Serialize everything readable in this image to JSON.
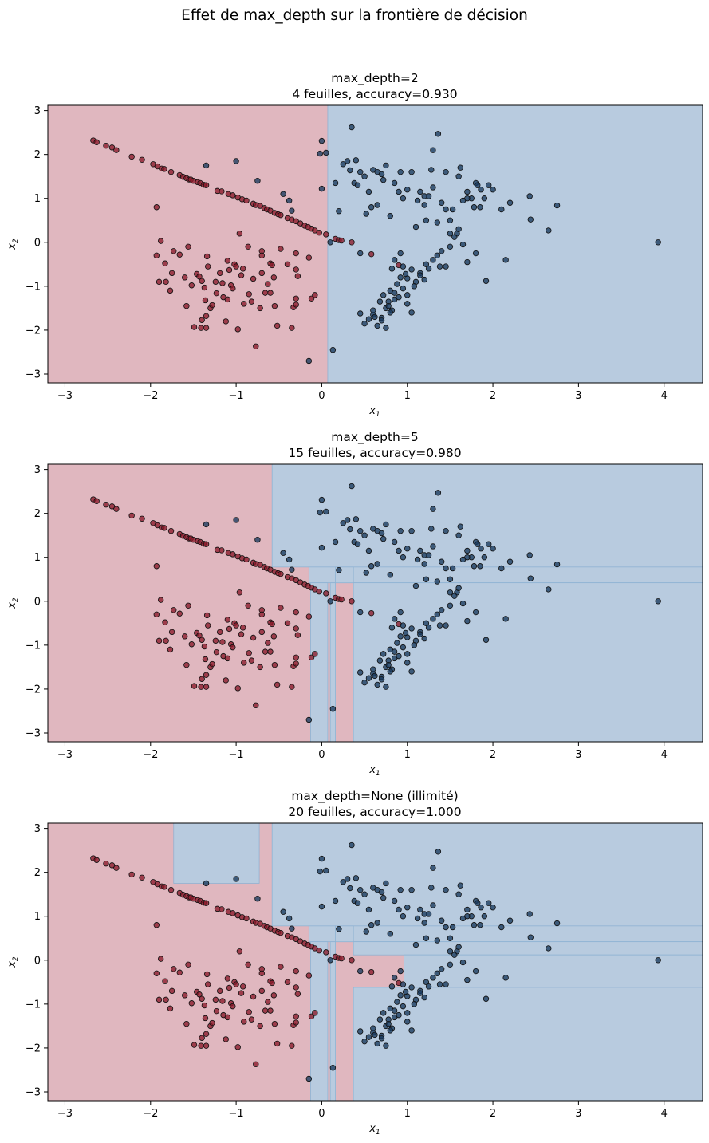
{
  "suptitle": "Effet de max_depth sur la frontière de décision",
  "colors": {
    "region_class0": "#e0b7bf",
    "region_class1": "#b8cbdf",
    "point_class0": "#8b1a2a",
    "point_class1": "#1a3a5e",
    "point_edge": "#111111"
  },
  "chart_data": [
    {
      "type": "scatter",
      "title_line1": "max_depth=2",
      "title_line2": "4 feuilles, accuracy=0.930",
      "xlabel": "x",
      "xlabel_sub": "1",
      "ylabel": "x",
      "ylabel_sub": "2",
      "xlim": [
        -3.2,
        4.45
      ],
      "ylim": [
        -3.2,
        3.12
      ],
      "xticks": [
        "−3",
        "−2",
        "−1",
        "0",
        "1",
        "2",
        "3",
        "4"
      ],
      "yticks": [
        "−3",
        "−2",
        "−1",
        "0",
        "1",
        "2",
        "3"
      ],
      "regions_class1": [
        [
          0.07,
          4.45,
          -3.2,
          3.12
        ]
      ]
    },
    {
      "type": "scatter",
      "title_line1": "max_depth=5",
      "title_line2": "15 feuilles, accuracy=0.980",
      "xlabel": "x",
      "xlabel_sub": "1",
      "ylabel": "x",
      "ylabel_sub": "2",
      "xlim": [
        -3.2,
        4.45
      ],
      "ylim": [
        -3.2,
        3.12
      ],
      "xticks": [
        "−3",
        "−2",
        "−1",
        "0",
        "1",
        "2",
        "3",
        "4"
      ],
      "yticks": [
        "−3",
        "−2",
        "−1",
        "0",
        "1",
        "2",
        "3"
      ],
      "regions_class1": [
        [
          -0.58,
          4.45,
          0.78,
          3.12
        ],
        [
          -0.15,
          4.45,
          0.42,
          0.78
        ],
        [
          0.37,
          4.45,
          -3.2,
          0.42
        ],
        [
          -0.13,
          0.07,
          -3.2,
          0.42
        ],
        [
          0.1,
          0.16,
          -3.2,
          0.42
        ],
        [
          0.16,
          0.37,
          0.42,
          0.78
        ]
      ]
    },
    {
      "type": "scatter",
      "title_line1": "max_depth=None (illimité)",
      "title_line2": "20 feuilles, accuracy=1.000",
      "xlabel": "x",
      "xlabel_sub": "1",
      "ylabel": "x",
      "ylabel_sub": "2",
      "xlim": [
        -3.2,
        4.45
      ],
      "ylim": [
        -3.2,
        3.12
      ],
      "xticks": [
        "−3",
        "−2",
        "−1",
        "0",
        "1",
        "2",
        "3",
        "4"
      ],
      "yticks": [
        "−3",
        "−2",
        "−1",
        "0",
        "1",
        "2",
        "3"
      ],
      "regions_class1": [
        [
          -1.73,
          -0.73,
          1.75,
          3.12
        ],
        [
          -0.58,
          4.45,
          0.78,
          3.12
        ],
        [
          -0.15,
          4.45,
          0.42,
          0.78
        ],
        [
          0.37,
          4.45,
          0.12,
          0.42
        ],
        [
          0.96,
          4.45,
          -0.62,
          0.12
        ],
        [
          0.37,
          4.45,
          -3.2,
          -0.62
        ],
        [
          -0.13,
          0.07,
          -3.2,
          0.42
        ],
        [
          0.1,
          0.16,
          -3.2,
          0.42
        ],
        [
          0.16,
          0.37,
          0.42,
          0.78
        ]
      ]
    }
  ],
  "points": {
    "class0": [
      [
        -2.67,
        2.32
      ],
      [
        -2.63,
        2.28
      ],
      [
        -2.52,
        2.2
      ],
      [
        -2.45,
        2.16
      ],
      [
        -2.4,
        2.1
      ],
      [
        -2.22,
        1.95
      ],
      [
        -2.1,
        1.88
      ],
      [
        -1.97,
        1.78
      ],
      [
        -1.92,
        1.73
      ],
      [
        -1.87,
        1.68
      ],
      [
        -1.84,
        1.67
      ],
      [
        -1.76,
        1.6
      ],
      [
        -1.66,
        1.53
      ],
      [
        -1.62,
        1.49
      ],
      [
        -1.58,
        1.46
      ],
      [
        -1.55,
        1.43
      ],
      [
        -1.53,
        1.43
      ],
      [
        -1.5,
        1.4
      ],
      [
        -1.45,
        1.37
      ],
      [
        -1.42,
        1.35
      ],
      [
        -1.38,
        1.31
      ],
      [
        -1.35,
        1.3
      ],
      [
        -1.22,
        1.17
      ],
      [
        -1.17,
        1.16
      ],
      [
        -1.09,
        1.1
      ],
      [
        -1.04,
        1.07
      ],
      [
        -0.98,
        1.02
      ],
      [
        -0.93,
        0.98
      ],
      [
        -0.88,
        0.95
      ],
      [
        -0.8,
        0.88
      ],
      [
        -0.77,
        0.85
      ],
      [
        -0.72,
        0.83
      ],
      [
        -0.67,
        0.78
      ],
      [
        -0.64,
        0.75
      ],
      [
        -0.6,
        0.72
      ],
      [
        -0.55,
        0.67
      ],
      [
        -0.51,
        0.64
      ],
      [
        -0.48,
        0.62
      ],
      [
        -0.4,
        0.55
      ],
      [
        -0.35,
        0.52
      ],
      [
        -0.3,
        0.48
      ],
      [
        -0.25,
        0.43
      ],
      [
        -0.2,
        0.38
      ],
      [
        -0.16,
        0.35
      ],
      [
        -0.12,
        0.31
      ],
      [
        -0.08,
        0.27
      ],
      [
        -0.03,
        0.22
      ],
      [
        0.05,
        0.18
      ],
      [
        0.16,
        0.08
      ],
      [
        0.2,
        0.05
      ],
      [
        0.23,
        0.04
      ],
      [
        0.35,
        0.0
      ],
      [
        -1.93,
        0.8
      ],
      [
        -1.88,
        0.03
      ],
      [
        -1.93,
        -0.3
      ],
      [
        -1.9,
        -0.9
      ],
      [
        -1.82,
        -0.9
      ],
      [
        -1.77,
        -1.1
      ],
      [
        -1.83,
        -0.48
      ],
      [
        -1.75,
        -0.7
      ],
      [
        -1.73,
        -0.2
      ],
      [
        -1.66,
        -0.28
      ],
      [
        -1.6,
        -0.8
      ],
      [
        -1.58,
        -1.45
      ],
      [
        -1.56,
        -0.1
      ],
      [
        -1.52,
        -0.98
      ],
      [
        -1.46,
        -0.72
      ],
      [
        -1.49,
        -1.93
      ],
      [
        -1.43,
        -0.78
      ],
      [
        -1.41,
        -1.95
      ],
      [
        -1.4,
        -0.88
      ],
      [
        -1.37,
        -1.03
      ],
      [
        -1.36,
        -1.32
      ],
      [
        -1.35,
        -1.95
      ],
      [
        -1.34,
        -0.32
      ],
      [
        -1.33,
        -0.55
      ],
      [
        -1.3,
        -1.5
      ],
      [
        -1.28,
        -1.43
      ],
      [
        -1.24,
        -0.9
      ],
      [
        -1.23,
        -1.16
      ],
      [
        -1.19,
        -0.7
      ],
      [
        -1.16,
        -0.93
      ],
      [
        -1.15,
        -1.25
      ],
      [
        -1.12,
        -1.8
      ],
      [
        -1.1,
        -0.42
      ],
      [
        -1.08,
        -0.63
      ],
      [
        -1.06,
        -0.98
      ],
      [
        -1.04,
        -1.05
      ],
      [
        -1.02,
        -0.5
      ],
      [
        -1.0,
        -0.55
      ],
      [
        -0.98,
        -1.98
      ],
      [
        -0.96,
        0.2
      ],
      [
        -0.94,
        -0.75
      ],
      [
        -0.92,
        -0.6
      ],
      [
        -0.91,
        -1.4
      ],
      [
        -0.86,
        -0.1
      ],
      [
        -0.85,
        -1.18
      ],
      [
        -0.8,
        -0.83
      ],
      [
        -0.77,
        -2.37
      ],
      [
        -0.72,
        -1.5
      ],
      [
        -0.7,
        -0.2
      ],
      [
        -0.7,
        -0.3
      ],
      [
        -0.7,
        -0.7
      ],
      [
        -0.66,
        -1.15
      ],
      [
        -0.63,
        -0.95
      ],
      [
        -0.6,
        -0.48
      ],
      [
        -0.58,
        -0.52
      ],
      [
        -0.56,
        -0.8
      ],
      [
        -0.55,
        -1.45
      ],
      [
        -0.52,
        -1.9
      ],
      [
        -0.48,
        -0.15
      ],
      [
        -0.4,
        -0.5
      ],
      [
        -0.35,
        -1.95
      ],
      [
        -0.33,
        -1.48
      ],
      [
        -0.3,
        -1.28
      ],
      [
        -0.3,
        -0.25
      ],
      [
        -0.3,
        -0.62
      ],
      [
        -0.3,
        -1.42
      ],
      [
        -0.28,
        -0.77
      ],
      [
        -0.15,
        -0.35
      ],
      [
        -0.12,
        -1.28
      ],
      [
        -0.08,
        -1.2
      ],
      [
        -1.4,
        -1.77
      ],
      [
        -1.35,
        -1.68
      ],
      [
        -1.1,
        -1.3
      ],
      [
        -0.82,
        -1.35
      ],
      [
        -0.6,
        -1.15
      ],
      [
        0.58,
        -0.27
      ],
      [
        0.9,
        -0.52
      ]
    ],
    "class1": [
      [
        -0.02,
        2.02
      ],
      [
        0.0,
        2.31
      ],
      [
        0.0,
        1.22
      ],
      [
        0.05,
        2.04
      ],
      [
        0.1,
        0.0
      ],
      [
        0.16,
        1.35
      ],
      [
        0.2,
        0.71
      ],
      [
        0.25,
        1.78
      ],
      [
        0.3,
        1.85
      ],
      [
        0.33,
        1.64
      ],
      [
        0.35,
        2.62
      ],
      [
        0.38,
        1.35
      ],
      [
        0.4,
        1.87
      ],
      [
        0.42,
        1.3
      ],
      [
        0.45,
        1.6
      ],
      [
        0.5,
        1.5
      ],
      [
        0.52,
        0.65
      ],
      [
        0.55,
        1.15
      ],
      [
        0.58,
        0.8
      ],
      [
        0.6,
        1.65
      ],
      [
        0.65,
        0.85
      ],
      [
        0.65,
        1.6
      ],
      [
        0.7,
        1.55
      ],
      [
        0.72,
        1.42
      ],
      [
        0.75,
        1.75
      ],
      [
        0.8,
        0.6
      ],
      [
        0.85,
        1.35
      ],
      [
        0.9,
        1.15
      ],
      [
        0.92,
        1.6
      ],
      [
        0.95,
        1.0
      ],
      [
        1.0,
        1.2
      ],
      [
        1.05,
        1.6
      ],
      [
        1.1,
        0.35
      ],
      [
        1.12,
        0.95
      ],
      [
        1.15,
        1.15
      ],
      [
        1.2,
        0.85
      ],
      [
        1.22,
        0.5
      ],
      [
        1.25,
        1.05
      ],
      [
        1.28,
        1.65
      ],
      [
        1.3,
        1.25
      ],
      [
        1.35,
        0.45
      ],
      [
        1.36,
        2.47
      ],
      [
        1.4,
        0.9
      ],
      [
        1.45,
        0.75
      ],
      [
        1.5,
        0.2
      ],
      [
        1.53,
        0.75
      ],
      [
        1.58,
        0.2
      ],
      [
        1.6,
        1.5
      ],
      [
        1.62,
        1.7
      ],
      [
        1.65,
        0.95
      ],
      [
        1.7,
        1.15
      ],
      [
        1.75,
        1.0
      ],
      [
        1.78,
        0.8
      ],
      [
        1.8,
        1.35
      ],
      [
        1.82,
        1.3
      ],
      [
        1.86,
        1.2
      ],
      [
        1.9,
        1.0
      ],
      [
        1.95,
        1.3
      ],
      [
        2.0,
        1.2
      ],
      [
        2.1,
        0.75
      ],
      [
        2.2,
        0.9
      ],
      [
        2.43,
        1.05
      ],
      [
        2.44,
        0.52
      ],
      [
        2.65,
        0.27
      ],
      [
        2.75,
        0.84
      ],
      [
        3.93,
        0.0
      ],
      [
        1.3,
        2.1
      ],
      [
        1.7,
        1.0
      ],
      [
        1.85,
        0.8
      ],
      [
        1.2,
        1.05
      ],
      [
        1.45,
        1.6
      ],
      [
        -1.35,
        1.75
      ],
      [
        -1.0,
        1.85
      ],
      [
        -0.75,
        1.4
      ],
      [
        -0.45,
        1.1
      ],
      [
        -0.38,
        0.95
      ],
      [
        -0.35,
        0.72
      ],
      [
        0.45,
        -0.25
      ],
      [
        -0.15,
        -2.7
      ],
      [
        0.13,
        -2.45
      ],
      [
        0.6,
        -1.65
      ],
      [
        0.82,
        -0.6
      ],
      [
        0.85,
        -0.4
      ],
      [
        0.92,
        -0.25
      ],
      [
        0.95,
        -0.55
      ],
      [
        1.0,
        -0.82
      ],
      [
        1.05,
        -0.62
      ],
      [
        1.1,
        -0.9
      ],
      [
        1.15,
        -0.7
      ],
      [
        1.2,
        -0.85
      ],
      [
        1.22,
        -0.5
      ],
      [
        1.25,
        -0.6
      ],
      [
        1.3,
        -0.4
      ],
      [
        1.35,
        -0.3
      ],
      [
        1.4,
        -0.2
      ],
      [
        1.45,
        -0.55
      ],
      [
        1.5,
        -0.1
      ],
      [
        1.55,
        0.12
      ],
      [
        1.6,
        0.3
      ],
      [
        1.65,
        -0.05
      ],
      [
        1.7,
        -0.45
      ],
      [
        1.8,
        -0.25
      ],
      [
        1.92,
        -0.88
      ],
      [
        2.15,
        -0.4
      ],
      [
        1.5,
        0.5
      ],
      [
        0.8,
        -1.1
      ],
      [
        0.85,
        -1.3
      ],
      [
        0.75,
        -1.5
      ],
      [
        0.7,
        -1.72
      ],
      [
        0.65,
        -1.9
      ],
      [
        0.78,
        -1.35
      ],
      [
        0.82,
        -1.55
      ],
      [
        0.9,
        -1.25
      ],
      [
        0.95,
        -1.05
      ],
      [
        1.0,
        -1.4
      ],
      [
        0.55,
        -1.75
      ],
      [
        0.5,
        -1.85
      ],
      [
        0.6,
        -1.55
      ],
      [
        0.68,
        -1.35
      ],
      [
        0.72,
        -1.2
      ],
      [
        0.88,
        -0.95
      ],
      [
        0.92,
        -0.8
      ],
      [
        1.0,
        -1.2
      ],
      [
        1.05,
        -1.6
      ],
      [
        0.45,
        -1.62
      ],
      [
        0.62,
        -1.7
      ],
      [
        0.75,
        -1.95
      ],
      [
        0.85,
        -1.15
      ],
      [
        1.08,
        -1.0
      ],
      [
        1.15,
        -0.75
      ],
      [
        0.98,
        -0.72
      ],
      [
        1.38,
        -0.55
      ],
      [
        0.7,
        -1.78
      ],
      [
        0.8,
        -1.6
      ],
      [
        0.78,
        -1.45
      ]
    ]
  }
}
